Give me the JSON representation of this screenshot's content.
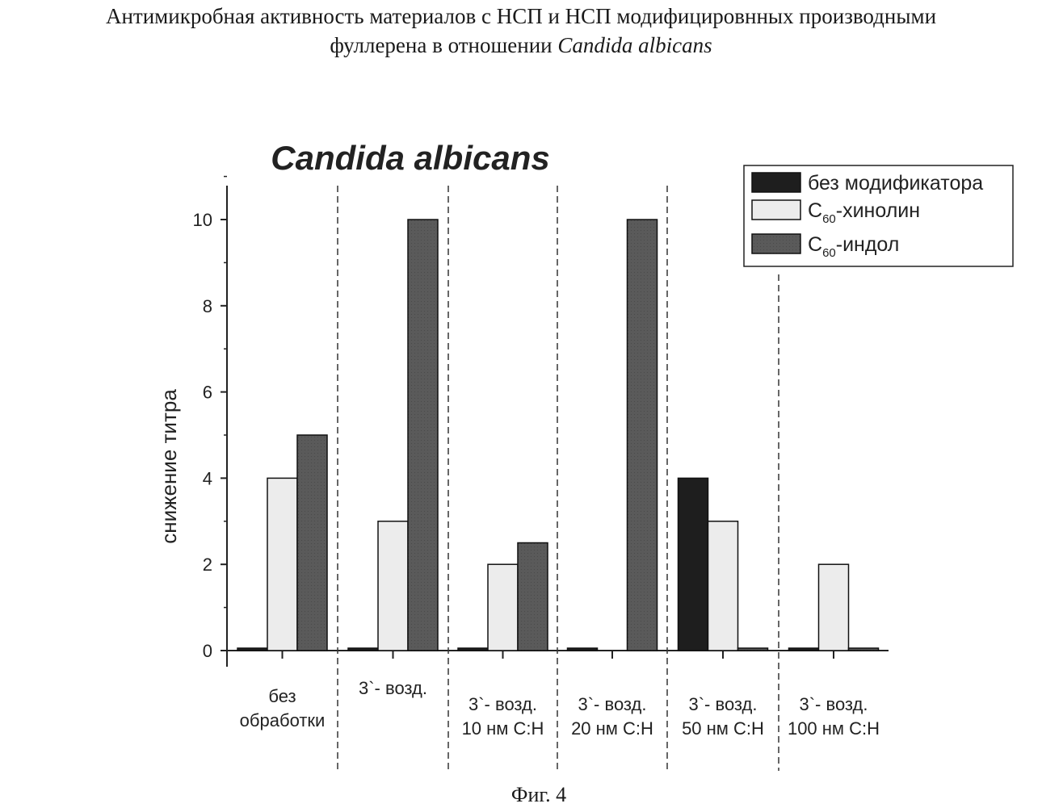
{
  "page": {
    "title_line1": "Антимикробная активность материалов с НСП и НСП модифицировнных производными",
    "title_line2_prefix": "фуллерена в отношении ",
    "title_line2_italic": "Candida albicans",
    "figure_caption": "Фиг. 4"
  },
  "chart_data": {
    "type": "bar",
    "title": "Candida albicans",
    "ylabel": "снижение титра",
    "xlabel": "",
    "ylim": [
      0,
      11
    ],
    "yticks": [
      0,
      2,
      4,
      6,
      8,
      10
    ],
    "categories": [
      [
        "без",
        "обработки"
      ],
      [
        "3`- возд."
      ],
      [
        "3`- возд.",
        "10 нм С:Н"
      ],
      [
        "3`- возд.",
        "20 нм С:Н"
      ],
      [
        "3`- возд.",
        "50 нм С:Н"
      ],
      [
        "3`- возд.",
        "100 нм С:Н"
      ]
    ],
    "series": [
      {
        "name": "без модификатора",
        "label_main": "без модификатора",
        "label_sub": "",
        "label_tail": "",
        "color": "#1e1e1e",
        "values": [
          0.05,
          0.05,
          0.05,
          0.05,
          4.0,
          0.05
        ]
      },
      {
        "name": "C60-хинолин",
        "label_main": "C",
        "label_sub": "60",
        "label_tail": "-хинолин",
        "color": "#ececec",
        "values": [
          4.0,
          3.0,
          2.0,
          0,
          3.0,
          2.0
        ]
      },
      {
        "name": "C60-индол",
        "label_main": "C",
        "label_sub": "60",
        "label_tail": "-индол",
        "color": "#5a5a5a",
        "values": [
          5.0,
          10.0,
          2.5,
          10.0,
          0.05,
          0.05
        ]
      }
    ],
    "grid": false,
    "legend_position": "top-right",
    "separators": "dashed vertical lines between groups"
  }
}
